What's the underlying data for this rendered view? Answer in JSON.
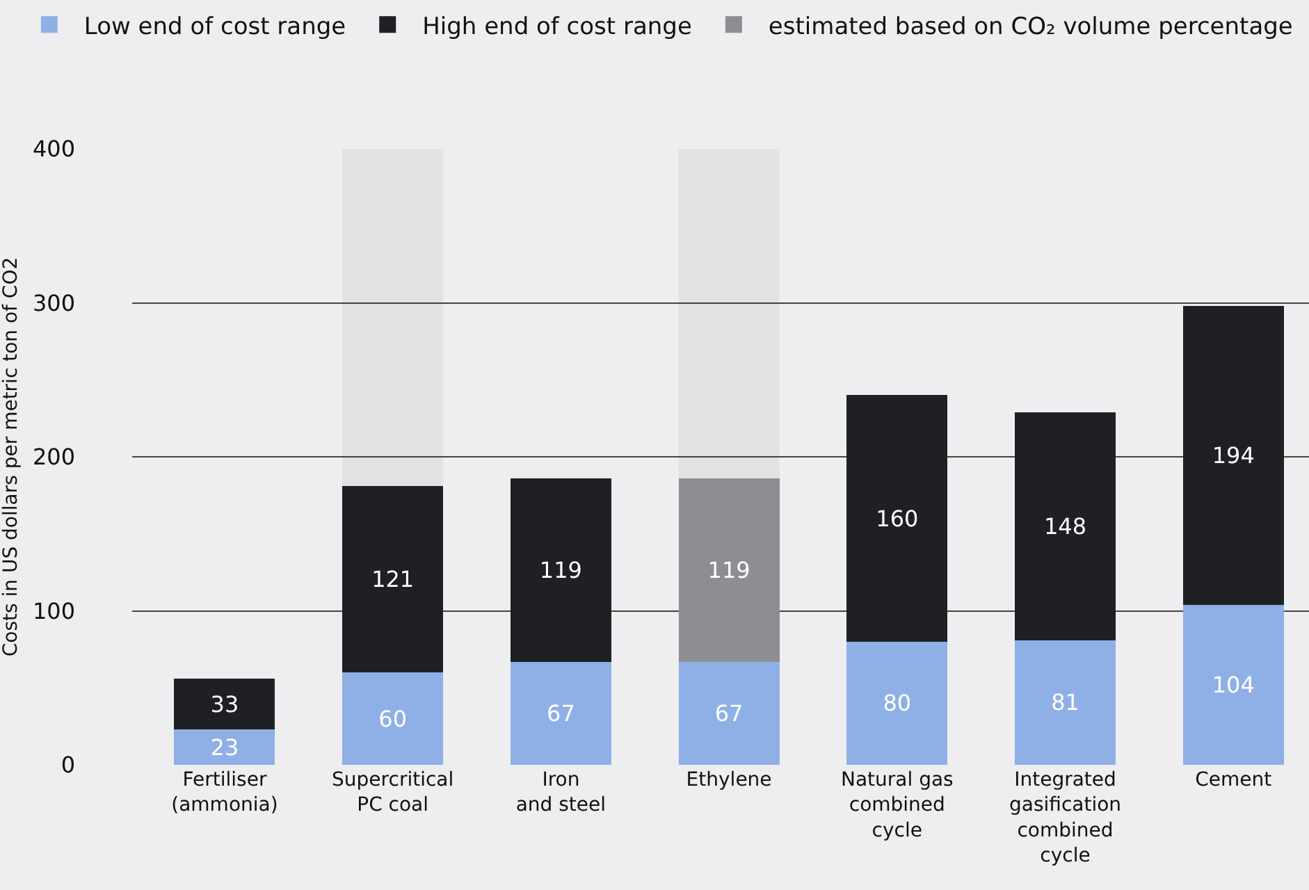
{
  "chart_data": {
    "type": "bar",
    "stacked": true,
    "ylabel": "Costs in US dollars per metric ton of CO2",
    "categories": [
      "Fertiliser\n(ammonia)",
      "Supercritical\nPC coal",
      "Iron\nand steel",
      "Ethylene",
      "Natural gas\ncombined\ncycle",
      "Integrated\ngasification\ncombined\ncycle",
      "Cement"
    ],
    "series": [
      {
        "name": "Low end of cost range",
        "color": "#8fb0e6",
        "values": [
          23,
          60,
          67,
          67,
          80,
          81,
          104
        ]
      },
      {
        "name": "High end of cost range",
        "color": "#1f2024",
        "values": [
          33,
          121,
          119,
          null,
          160,
          148,
          194
        ]
      },
      {
        "name": "estimated based on CO₂ volume percentage",
        "color": "#8e8e92",
        "values": [
          null,
          null,
          null,
          119,
          null,
          null,
          null
        ]
      }
    ],
    "ylim": [
      0,
      400
    ],
    "yticks": [
      0,
      100,
      200,
      300,
      400
    ],
    "grid": "y",
    "legend": "top",
    "data_labels": true,
    "bands": [
      {
        "axis": "x",
        "from": "Supercritical\nPC coal",
        "to": "Supercritical\nPC coal",
        "color": "#e2e2e5"
      },
      {
        "axis": "x",
        "from": "Ethylene",
        "to": "Ethylene",
        "color": "#e2e2e5"
      }
    ]
  }
}
